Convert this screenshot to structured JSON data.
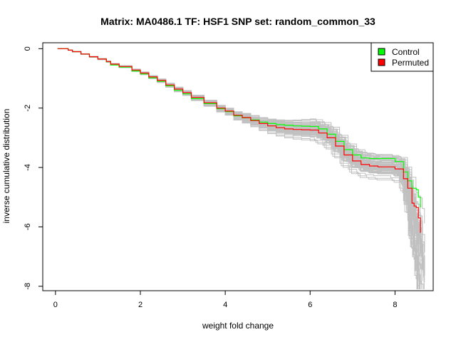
{
  "chart_data": {
    "type": "line",
    "title": "Matrix: MA0486.1 TF: HSF1 SNP set: random_common_33",
    "xlabel": "weight fold change",
    "ylabel": "inverse cumulative distribution",
    "xlim": [
      -0.3,
      8.9
    ],
    "ylim": [
      -8.15,
      0.2
    ],
    "x_ticks": [
      0,
      2,
      4,
      6,
      8
    ],
    "y_ticks": [
      0,
      -2,
      -4,
      -6,
      -8
    ],
    "x_tick_labels": [
      "0",
      "2",
      "4",
      "6",
      "8"
    ],
    "y_tick_labels": [
      "0",
      "-2",
      "-4",
      "-6",
      "-8"
    ],
    "grid": false,
    "legend_position": "top-right",
    "colors": {
      "control": "#00ff00",
      "permuted": "#ff0000",
      "random": "#c0c0c0"
    },
    "series": [
      {
        "name": "Control",
        "color": "#00ff00",
        "x": [
          0.05,
          0.25,
          0.3,
          0.4,
          0.6,
          0.8,
          1.0,
          1.2,
          1.3,
          1.5,
          1.8,
          2.0,
          2.2,
          2.4,
          2.6,
          2.8,
          3.0,
          3.2,
          3.5,
          3.8,
          4.0,
          4.2,
          4.4,
          4.6,
          4.8,
          5.0,
          5.2,
          5.4,
          5.6,
          5.8,
          6.0,
          6.2,
          6.4,
          6.6,
          6.8,
          7.0,
          7.2,
          7.4,
          7.6,
          7.8,
          8.0,
          8.2,
          8.3,
          8.4,
          8.5,
          8.55,
          8.6
        ],
        "y": [
          0.0,
          0.0,
          -0.05,
          -0.1,
          -0.18,
          -0.27,
          -0.35,
          -0.44,
          -0.55,
          -0.62,
          -0.75,
          -0.85,
          -0.98,
          -1.1,
          -1.25,
          -1.4,
          -1.52,
          -1.68,
          -1.85,
          -2.02,
          -2.12,
          -2.26,
          -2.33,
          -2.4,
          -2.47,
          -2.52,
          -2.56,
          -2.58,
          -2.6,
          -2.61,
          -2.62,
          -2.7,
          -2.88,
          -3.12,
          -3.4,
          -3.58,
          -3.68,
          -3.7,
          -3.7,
          -3.7,
          -3.8,
          -4.15,
          -4.45,
          -4.7,
          -4.75,
          -5.0,
          -5.35
        ]
      },
      {
        "name": "Permuted",
        "color": "#ff0000",
        "x": [
          0.05,
          0.25,
          0.3,
          0.4,
          0.6,
          0.8,
          1.0,
          1.2,
          1.3,
          1.5,
          1.8,
          2.0,
          2.2,
          2.4,
          2.6,
          2.8,
          3.0,
          3.2,
          3.5,
          3.8,
          4.0,
          4.2,
          4.4,
          4.6,
          4.8,
          5.0,
          5.2,
          5.4,
          5.6,
          5.8,
          6.0,
          6.2,
          6.4,
          6.6,
          6.8,
          7.0,
          7.2,
          7.4,
          7.6,
          7.8,
          8.0,
          8.2,
          8.3,
          8.4,
          8.45,
          8.5,
          8.55,
          8.6
        ],
        "y": [
          0.0,
          0.0,
          -0.05,
          -0.1,
          -0.18,
          -0.27,
          -0.35,
          -0.43,
          -0.52,
          -0.6,
          -0.72,
          -0.82,
          -0.95,
          -1.07,
          -1.22,
          -1.36,
          -1.48,
          -1.64,
          -1.82,
          -2.0,
          -2.1,
          -2.24,
          -2.32,
          -2.42,
          -2.52,
          -2.6,
          -2.66,
          -2.7,
          -2.72,
          -2.73,
          -2.74,
          -2.84,
          -3.0,
          -3.28,
          -3.58,
          -3.78,
          -3.9,
          -3.95,
          -3.98,
          -3.98,
          -4.05,
          -4.38,
          -4.7,
          -5.2,
          -5.3,
          -5.35,
          -5.7,
          -6.2
        ]
      }
    ],
    "legend": [
      "Control",
      "Permuted"
    ],
    "random_curves_color": "#c0c0c0"
  }
}
